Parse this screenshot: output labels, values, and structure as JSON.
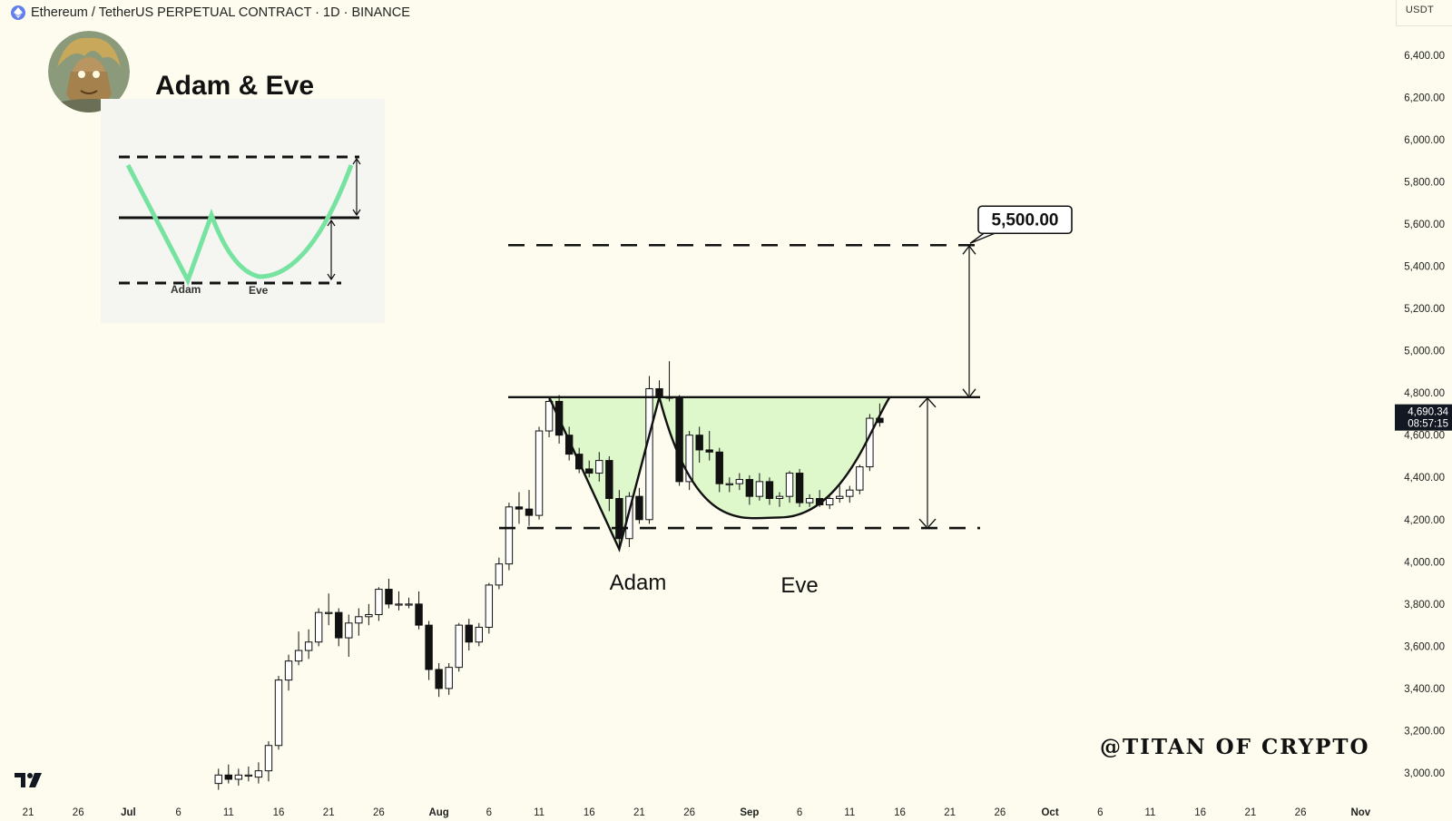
{
  "header": {
    "symbol_icon": "ethereum-icon",
    "title": "Ethereum / TetherUS PERPETUAL CONTRACT · 1D · BINANCE"
  },
  "currency_label": "USDT",
  "avatar_icon": "anime-avatar-icon",
  "inset": {
    "title": "Adam & Eve",
    "adam_label": "Adam",
    "eve_label": "Eve"
  },
  "watermark": "@TITAN OF CRYPTO",
  "colors": {
    "background": "#fdfcee",
    "pattern_fill": "#d8f6c4",
    "pattern_line": "#76e3a0",
    "candle_up": "#ffffff",
    "candle_down": "#111111",
    "price_tag_bg": "#131722"
  },
  "chart_data": {
    "type": "candlestick",
    "x_axis": {
      "tick_labels": [
        "21",
        "26",
        "Jul",
        "6",
        "11",
        "16",
        "21",
        "26",
        "Aug",
        "6",
        "11",
        "16",
        "21",
        "26",
        "Sep",
        "6",
        "11",
        "16",
        "21",
        "26",
        "Oct",
        "6",
        "11",
        "16",
        "21",
        "26",
        "Nov"
      ],
      "range": [
        "2025-06-21",
        "2025-11-01"
      ]
    },
    "y_axis": {
      "tick_labels": [
        "3,000.00",
        "3,200.00",
        "3,400.00",
        "3,600.00",
        "3,800.00",
        "4,000.00",
        "4,200.00",
        "4,400.00",
        "4,600.00",
        "4,800.00",
        "5,000.00",
        "5,200.00",
        "5,400.00",
        "5,600.00",
        "5,800.00",
        "6,000.00",
        "6,200.00",
        "6,400.00"
      ],
      "range": [
        2880,
        6500
      ]
    },
    "grid": false,
    "candles": [
      {
        "date": "2025-07-10",
        "o": 2950,
        "h": 3020,
        "l": 2920,
        "c": 2990
      },
      {
        "date": "2025-07-11",
        "o": 2990,
        "h": 3040,
        "l": 2950,
        "c": 2970
      },
      {
        "date": "2025-07-12",
        "o": 2970,
        "h": 3020,
        "l": 2940,
        "c": 2990
      },
      {
        "date": "2025-07-13",
        "o": 2990,
        "h": 3030,
        "l": 2960,
        "c": 2990
      },
      {
        "date": "2025-07-14",
        "o": 2980,
        "h": 3050,
        "l": 2950,
        "c": 3010
      },
      {
        "date": "2025-07-15",
        "o": 3010,
        "h": 3150,
        "l": 2960,
        "c": 3130
      },
      {
        "date": "2025-07-16",
        "o": 3130,
        "h": 3460,
        "l": 3110,
        "c": 3440
      },
      {
        "date": "2025-07-17",
        "o": 3440,
        "h": 3560,
        "l": 3390,
        "c": 3530
      },
      {
        "date": "2025-07-18",
        "o": 3530,
        "h": 3670,
        "l": 3510,
        "c": 3580
      },
      {
        "date": "2025-07-19",
        "o": 3580,
        "h": 3680,
        "l": 3540,
        "c": 3620
      },
      {
        "date": "2025-07-20",
        "o": 3620,
        "h": 3780,
        "l": 3600,
        "c": 3760
      },
      {
        "date": "2025-07-21",
        "o": 3760,
        "h": 3850,
        "l": 3700,
        "c": 3760
      },
      {
        "date": "2025-07-22",
        "o": 3760,
        "h": 3780,
        "l": 3600,
        "c": 3640
      },
      {
        "date": "2025-07-23",
        "o": 3640,
        "h": 3750,
        "l": 3550,
        "c": 3710
      },
      {
        "date": "2025-07-24",
        "o": 3710,
        "h": 3780,
        "l": 3650,
        "c": 3740
      },
      {
        "date": "2025-07-25",
        "o": 3740,
        "h": 3800,
        "l": 3700,
        "c": 3750
      },
      {
        "date": "2025-07-26",
        "o": 3750,
        "h": 3880,
        "l": 3720,
        "c": 3870
      },
      {
        "date": "2025-07-27",
        "o": 3870,
        "h": 3920,
        "l": 3780,
        "c": 3800
      },
      {
        "date": "2025-07-28",
        "o": 3800,
        "h": 3860,
        "l": 3770,
        "c": 3800
      },
      {
        "date": "2025-07-29",
        "o": 3800,
        "h": 3830,
        "l": 3780,
        "c": 3800
      },
      {
        "date": "2025-07-30",
        "o": 3800,
        "h": 3860,
        "l": 3680,
        "c": 3700
      },
      {
        "date": "2025-07-31",
        "o": 3700,
        "h": 3720,
        "l": 3440,
        "c": 3490
      },
      {
        "date": "2025-08-01",
        "o": 3490,
        "h": 3520,
        "l": 3360,
        "c": 3400
      },
      {
        "date": "2025-08-02",
        "o": 3400,
        "h": 3520,
        "l": 3370,
        "c": 3500
      },
      {
        "date": "2025-08-03",
        "o": 3500,
        "h": 3710,
        "l": 3480,
        "c": 3700
      },
      {
        "date": "2025-08-04",
        "o": 3700,
        "h": 3730,
        "l": 3580,
        "c": 3620
      },
      {
        "date": "2025-08-05",
        "o": 3620,
        "h": 3710,
        "l": 3600,
        "c": 3690
      },
      {
        "date": "2025-08-06",
        "o": 3690,
        "h": 3900,
        "l": 3660,
        "c": 3890
      },
      {
        "date": "2025-08-07",
        "o": 3890,
        "h": 4020,
        "l": 3870,
        "c": 3990
      },
      {
        "date": "2025-08-08",
        "o": 3990,
        "h": 4280,
        "l": 3960,
        "c": 4260
      },
      {
        "date": "2025-08-09",
        "o": 4260,
        "h": 4330,
        "l": 4180,
        "c": 4250
      },
      {
        "date": "2025-08-10",
        "o": 4250,
        "h": 4340,
        "l": 4170,
        "c": 4220
      },
      {
        "date": "2025-08-11",
        "o": 4220,
        "h": 4640,
        "l": 4200,
        "c": 4620
      },
      {
        "date": "2025-08-12",
        "o": 4620,
        "h": 4780,
        "l": 4590,
        "c": 4760
      },
      {
        "date": "2025-08-13",
        "o": 4760,
        "h": 4790,
        "l": 4560,
        "c": 4600
      },
      {
        "date": "2025-08-14",
        "o": 4600,
        "h": 4640,
        "l": 4480,
        "c": 4510
      },
      {
        "date": "2025-08-15",
        "o": 4510,
        "h": 4540,
        "l": 4420,
        "c": 4440
      },
      {
        "date": "2025-08-16",
        "o": 4440,
        "h": 4480,
        "l": 4400,
        "c": 4420
      },
      {
        "date": "2025-08-17",
        "o": 4420,
        "h": 4520,
        "l": 4380,
        "c": 4480
      },
      {
        "date": "2025-08-18",
        "o": 4480,
        "h": 4500,
        "l": 4240,
        "c": 4300
      },
      {
        "date": "2025-08-19",
        "o": 4300,
        "h": 4340,
        "l": 4050,
        "c": 4110
      },
      {
        "date": "2025-08-20",
        "o": 4110,
        "h": 4330,
        "l": 4070,
        "c": 4310
      },
      {
        "date": "2025-08-21",
        "o": 4310,
        "h": 4350,
        "l": 4180,
        "c": 4200
      },
      {
        "date": "2025-08-22",
        "o": 4200,
        "h": 4880,
        "l": 4180,
        "c": 4820
      },
      {
        "date": "2025-08-23",
        "o": 4820,
        "h": 4860,
        "l": 4760,
        "c": 4780
      },
      {
        "date": "2025-08-24",
        "o": 4780,
        "h": 4950,
        "l": 4760,
        "c": 4780
      },
      {
        "date": "2025-08-25",
        "o": 4780,
        "h": 4790,
        "l": 4360,
        "c": 4380
      },
      {
        "date": "2025-08-26",
        "o": 4380,
        "h": 4620,
        "l": 4340,
        "c": 4600
      },
      {
        "date": "2025-08-27",
        "o": 4600,
        "h": 4640,
        "l": 4470,
        "c": 4530
      },
      {
        "date": "2025-08-28",
        "o": 4530,
        "h": 4620,
        "l": 4480,
        "c": 4520
      },
      {
        "date": "2025-08-29",
        "o": 4520,
        "h": 4540,
        "l": 4330,
        "c": 4370
      },
      {
        "date": "2025-08-30",
        "o": 4370,
        "h": 4400,
        "l": 4330,
        "c": 4370
      },
      {
        "date": "2025-08-31",
        "o": 4370,
        "h": 4420,
        "l": 4340,
        "c": 4390
      },
      {
        "date": "2025-09-01",
        "o": 4390,
        "h": 4410,
        "l": 4270,
        "c": 4310
      },
      {
        "date": "2025-09-02",
        "o": 4310,
        "h": 4420,
        "l": 4290,
        "c": 4380
      },
      {
        "date": "2025-09-03",
        "o": 4380,
        "h": 4400,
        "l": 4270,
        "c": 4300
      },
      {
        "date": "2025-09-04",
        "o": 4300,
        "h": 4330,
        "l": 4260,
        "c": 4310
      },
      {
        "date": "2025-09-05",
        "o": 4310,
        "h": 4430,
        "l": 4280,
        "c": 4420
      },
      {
        "date": "2025-09-06",
        "o": 4420,
        "h": 4440,
        "l": 4260,
        "c": 4280
      },
      {
        "date": "2025-09-07",
        "o": 4280,
        "h": 4320,
        "l": 4260,
        "c": 4300
      },
      {
        "date": "2025-09-08",
        "o": 4300,
        "h": 4340,
        "l": 4260,
        "c": 4270
      },
      {
        "date": "2025-09-09",
        "o": 4270,
        "h": 4310,
        "l": 4250,
        "c": 4300
      },
      {
        "date": "2025-09-10",
        "o": 4300,
        "h": 4360,
        "l": 4280,
        "c": 4310
      },
      {
        "date": "2025-09-11",
        "o": 4310,
        "h": 4360,
        "l": 4280,
        "c": 4340
      },
      {
        "date": "2025-09-12",
        "o": 4340,
        "h": 4460,
        "l": 4320,
        "c": 4450
      },
      {
        "date": "2025-09-13",
        "o": 4450,
        "h": 4700,
        "l": 4430,
        "c": 4680
      },
      {
        "date": "2025-09-14",
        "o": 4680,
        "h": 4750,
        "l": 4640,
        "c": 4660
      }
    ],
    "pattern": {
      "name": "Adam & Eve",
      "neckline": 4780,
      "support": 4160,
      "target": 5500,
      "adam_low": 4060,
      "eve_low": 4210,
      "target_label": "5,500.00",
      "adam_label": "Adam",
      "eve_label": "Eve"
    },
    "last_price": {
      "value": 4690.34,
      "label": "4,690.34",
      "countdown": "08:57:15"
    }
  }
}
